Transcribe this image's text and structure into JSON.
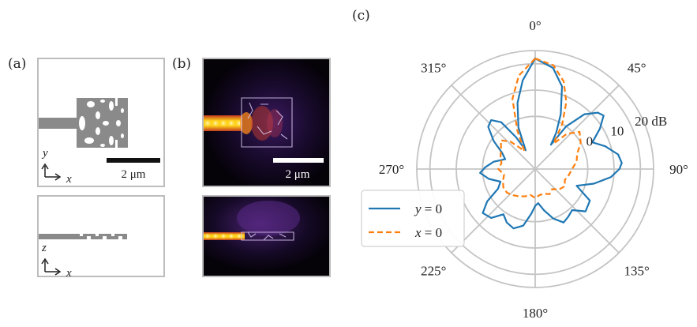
{
  "panels": {
    "a": {
      "label": "(a)",
      "top_axes": [
        "y",
        "x"
      ],
      "bottom_axes": [
        "z",
        "x"
      ],
      "scalebar": "2 μm"
    },
    "b": {
      "label": "(b)",
      "scalebar": "2 μm"
    },
    "c": {
      "label": "(c)"
    }
  },
  "chart_data": {
    "type": "polar",
    "angle_ticks": [
      "0°",
      "45°",
      "90°",
      "135°",
      "180°",
      "225°",
      "270°",
      "315°"
    ],
    "radial_ticks": [
      "0",
      "10",
      "20 dB"
    ],
    "radial_values": [
      0,
      10,
      20
    ],
    "rlim": [
      -20,
      25
    ],
    "grid": true,
    "legend_placement": "lower-left",
    "series": [
      {
        "name": "y = 0",
        "label_var": "y",
        "label_val": "0",
        "color": "#1f77b4",
        "style": "solid",
        "angles_deg": [
          0,
          10,
          18,
          25,
          30,
          33,
          36,
          42,
          48,
          52,
          58,
          65,
          72,
          80,
          86,
          90,
          96,
          104,
          112,
          120,
          130,
          138,
          145,
          152,
          160,
          168,
          175,
          180,
          185,
          192,
          200,
          208,
          215,
          222,
          230,
          236,
          242,
          250,
          258,
          266,
          272,
          280,
          288,
          296,
          304,
          312,
          318,
          324,
          329,
          333,
          338,
          345,
          352,
          360
        ],
        "values_db": [
          22,
          19,
          13,
          3,
          -4,
          -9,
          0,
          8,
          12,
          13,
          9,
          4,
          8,
          12,
          13,
          12,
          9,
          3,
          -3,
          4,
          5,
          1,
          2,
          3,
          0,
          -4,
          -7,
          -6,
          -3,
          2,
          4,
          3,
          1,
          5,
          6,
          2,
          -4,
          -6,
          -2,
          1,
          -1,
          -4,
          -8,
          -6,
          -1,
          4,
          5,
          2,
          -6,
          -12,
          -3,
          6,
          14,
          22
        ]
      },
      {
        "name": "x = 0",
        "label_var": "x",
        "label_val": "0",
        "color": "#ff7f0e",
        "style": "dashed",
        "angles_deg": [
          0,
          10,
          18,
          25,
          31,
          36,
          42,
          50,
          60,
          70,
          80,
          90,
          100,
          110,
          120,
          130,
          140,
          150,
          160,
          170,
          180,
          190,
          200,
          210,
          220,
          230,
          240,
          250,
          260,
          270,
          280,
          290,
          300,
          310,
          318,
          324,
          329,
          335,
          342,
          350,
          360
        ],
        "values_db": [
          22,
          20,
          15,
          8,
          0,
          -8,
          -2,
          2,
          0,
          -3,
          -4,
          -6,
          -7,
          -8,
          -7,
          -8,
          -10,
          -9,
          -10,
          -10,
          -9,
          -10,
          -9,
          -8,
          -7,
          -6,
          -6,
          -7,
          -8,
          -6,
          -7,
          -6,
          -5,
          -3,
          -6,
          -10,
          -12,
          -4,
          8,
          16,
          22
        ]
      }
    ]
  }
}
